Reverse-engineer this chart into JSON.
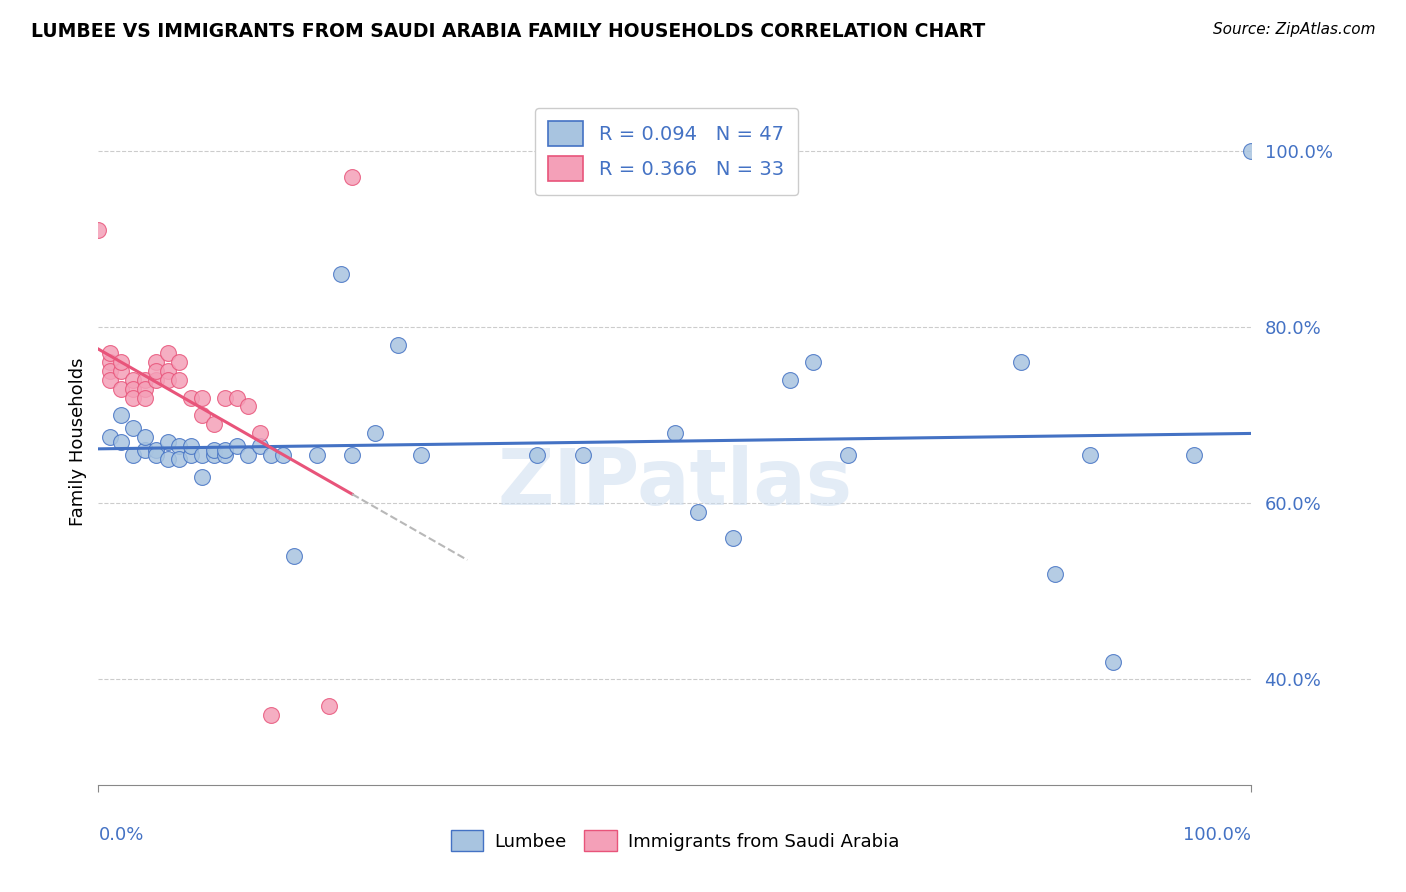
{
  "title": "LUMBEE VS IMMIGRANTS FROM SAUDI ARABIA FAMILY HOUSEHOLDS CORRELATION CHART",
  "source": "Source: ZipAtlas.com",
  "ylabel": "Family Households",
  "r_lumbee": 0.094,
  "n_lumbee": 47,
  "r_saudi": 0.366,
  "n_saudi": 33,
  "color_lumbee": "#a8c4e0",
  "color_saudi": "#f4a0b8",
  "line_color_lumbee": "#4472c4",
  "line_color_saudi": "#e8547a",
  "lumbee_x": [
    0.01,
    0.02,
    0.02,
    0.03,
    0.03,
    0.04,
    0.04,
    0.05,
    0.05,
    0.06,
    0.06,
    0.07,
    0.07,
    0.08,
    0.08,
    0.09,
    0.09,
    0.1,
    0.1,
    0.11,
    0.11,
    0.12,
    0.13,
    0.14,
    0.15,
    0.16,
    0.17,
    0.19,
    0.21,
    0.22,
    0.24,
    0.26,
    0.28,
    0.38,
    0.42,
    0.5,
    0.52,
    0.55,
    0.6,
    0.62,
    0.65,
    0.8,
    0.83,
    0.86,
    0.88,
    0.95,
    1.0
  ],
  "lumbee_y": [
    0.675,
    0.67,
    0.7,
    0.655,
    0.685,
    0.66,
    0.675,
    0.66,
    0.655,
    0.67,
    0.65,
    0.665,
    0.65,
    0.655,
    0.665,
    0.655,
    0.63,
    0.655,
    0.66,
    0.655,
    0.66,
    0.665,
    0.655,
    0.665,
    0.655,
    0.655,
    0.54,
    0.655,
    0.86,
    0.655,
    0.68,
    0.78,
    0.655,
    0.655,
    0.655,
    0.68,
    0.59,
    0.56,
    0.74,
    0.76,
    0.655,
    0.76,
    0.52,
    0.655,
    0.42,
    0.655,
    1.0
  ],
  "saudi_x": [
    0.0,
    0.01,
    0.01,
    0.01,
    0.01,
    0.02,
    0.02,
    0.02,
    0.03,
    0.03,
    0.03,
    0.04,
    0.04,
    0.04,
    0.05,
    0.05,
    0.05,
    0.06,
    0.06,
    0.06,
    0.07,
    0.07,
    0.08,
    0.09,
    0.09,
    0.1,
    0.11,
    0.12,
    0.13,
    0.14,
    0.15,
    0.2,
    0.22
  ],
  "saudi_y": [
    0.91,
    0.76,
    0.77,
    0.75,
    0.74,
    0.75,
    0.73,
    0.76,
    0.74,
    0.73,
    0.72,
    0.74,
    0.73,
    0.72,
    0.74,
    0.76,
    0.75,
    0.77,
    0.75,
    0.74,
    0.74,
    0.76,
    0.72,
    0.7,
    0.72,
    0.69,
    0.72,
    0.72,
    0.71,
    0.68,
    0.36,
    0.37,
    0.97
  ],
  "xlim": [
    0.0,
    1.0
  ],
  "ylim": [
    0.28,
    1.06
  ],
  "yticks": [
    0.4,
    0.6,
    0.8,
    1.0
  ],
  "ytick_labels": [
    "40.0%",
    "60.0%",
    "80.0%",
    "100.0%"
  ]
}
